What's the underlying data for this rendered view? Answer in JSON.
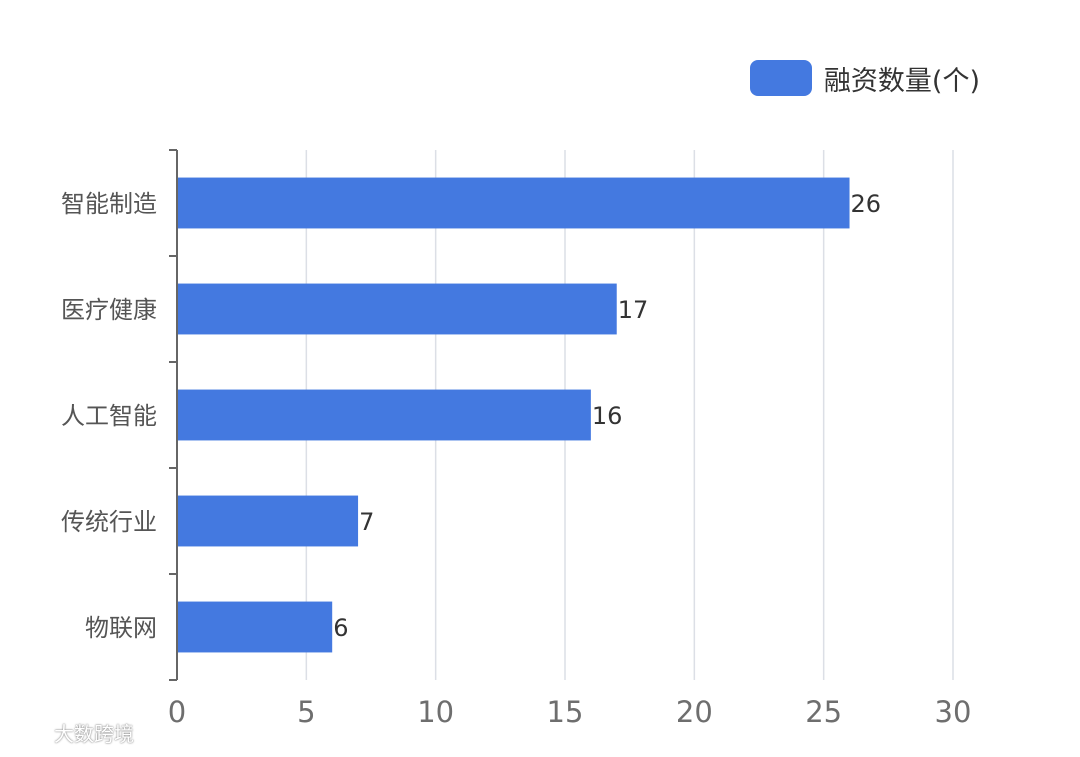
{
  "chart_data": {
    "type": "bar",
    "orientation": "horizontal",
    "categories": [
      "智能制造",
      "医疗健康",
      "人工智能",
      "传统行业",
      "物联网"
    ],
    "series": [
      {
        "name": "融资数量(个)",
        "values": [
          26,
          17,
          16,
          7,
          6
        ],
        "color": "#4479E0"
      }
    ],
    "xlim": [
      0,
      30
    ],
    "xticks": [
      0,
      5,
      10,
      15,
      20,
      25,
      30
    ],
    "grid": true,
    "legend_position": "top-right",
    "data_labels": true
  },
  "legend": {
    "label": "融资数量(个)",
    "color": "#4479E0"
  },
  "watermark": {
    "text": "大数跨境",
    "icon": "brand-logo-icon"
  },
  "colors": {
    "bar": "#4479E0",
    "axis": "#666666",
    "grid": "#DCDFE6",
    "label": "#555555",
    "value_label": "#333333"
  }
}
